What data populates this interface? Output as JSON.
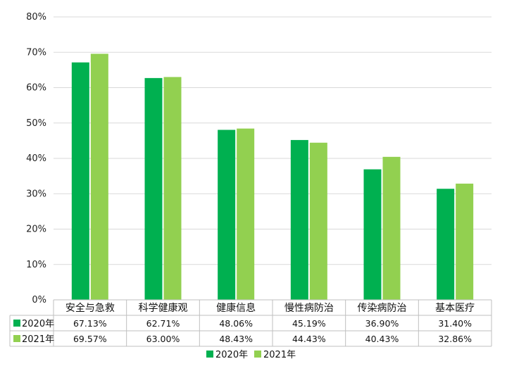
{
  "chart_data": {
    "type": "bar",
    "categories": [
      "安全与急救",
      "科学健康观",
      "健康信息",
      "慢性病防治",
      "传染病防治",
      "基本医疗"
    ],
    "series": [
      {
        "name": "2020年",
        "color": "#00b050",
        "values": [
          67.13,
          62.71,
          48.06,
          45.19,
          36.9,
          31.4
        ],
        "value_labels": [
          "67.13%",
          "62.71%",
          "48.06%",
          "45.19%",
          "36.90%",
          "31.40%"
        ]
      },
      {
        "name": "2021年",
        "color": "#92d050",
        "values": [
          69.57,
          63.0,
          48.43,
          44.43,
          40.43,
          32.86
        ],
        "value_labels": [
          "69.57%",
          "63.00%",
          "48.43%",
          "44.43%",
          "40.43%",
          "32.86%"
        ]
      }
    ],
    "ylim": [
      0,
      80
    ],
    "yticks": [
      "0%",
      "10%",
      "20%",
      "30%",
      "40%",
      "50%",
      "60%",
      "70%",
      "80%"
    ],
    "grid": true,
    "legend": "bottom",
    "data_table": true
  }
}
